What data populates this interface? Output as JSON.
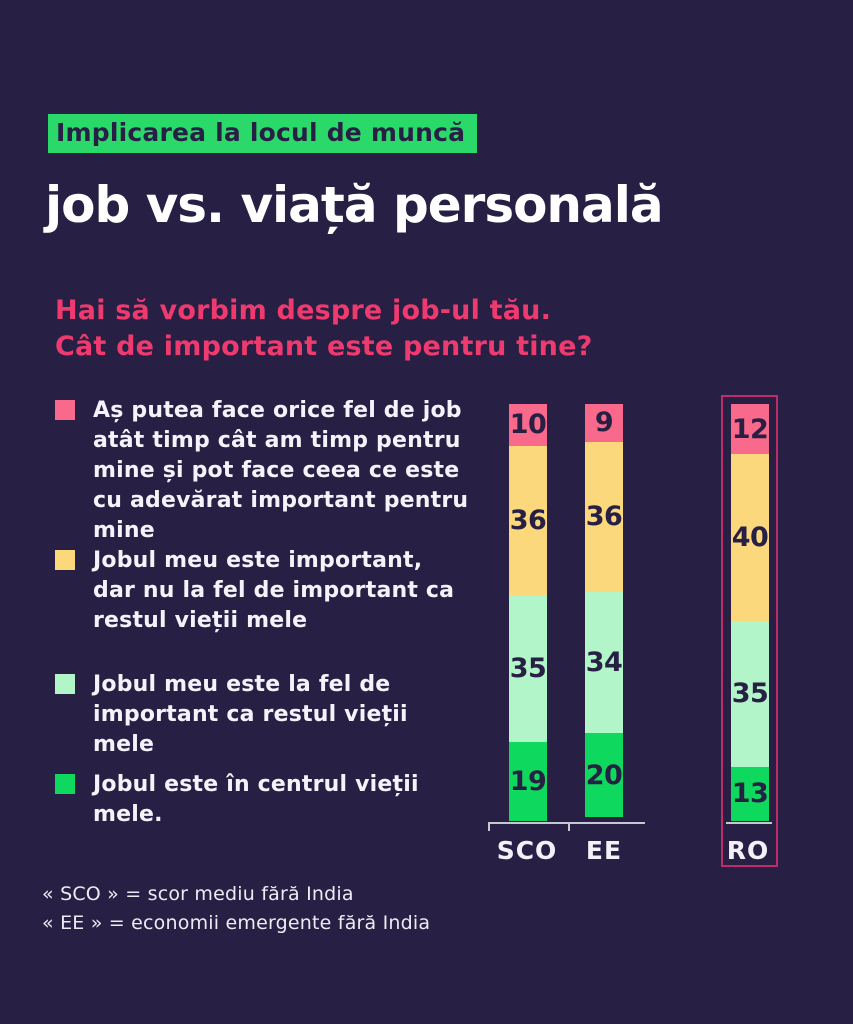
{
  "page": {
    "badge": {
      "label": "Implicarea la locul de muncă",
      "bg": "#2BD96A",
      "text_color": "#282044"
    },
    "title": "job vs. viață personală",
    "title_color": "#FFFFFF",
    "subtitle": {
      "line1": "Hai să vorbim despre job-ul tău.",
      "line2": "Cât de important este pentru tine?",
      "color": "#EE3A6E"
    },
    "background": "#282044"
  },
  "legend": {
    "items": [
      {
        "color": "#F9698C",
        "label": "Aș putea face orice fel de job atât timp cât am timp pentru mine și pot face ceea ce este cu adevărat important pentru mine"
      },
      {
        "color": "#FBD87B",
        "label": "Jobul meu este important, dar nu la fel de important ca restul vieții mele"
      },
      {
        "color": "#B2F5C8",
        "label": "Jobul meu este la fel de important ca restul vieții mele"
      },
      {
        "color": "#0ED95E",
        "label": "Jobul este în centrul vieții mele."
      }
    ]
  },
  "chart_data": {
    "type": "bar",
    "stacked": true,
    "orientation": "vertical",
    "categories": [
      "SCO",
      "EE",
      "RO"
    ],
    "series": [
      {
        "name": "Aș putea face orice fel de job atât timp cât am timp pentru mine și pot face ceea ce este cu adevărat important pentru mine",
        "color": "#F9698C",
        "values": [
          10,
          9,
          12
        ]
      },
      {
        "name": "Jobul meu este important, dar nu la fel de important ca restul vieții mele",
        "color": "#FBD87B",
        "values": [
          36,
          36,
          40
        ]
      },
      {
        "name": "Jobul meu este la fel de important ca restul vieții mele",
        "color": "#B2F5C8",
        "values": [
          35,
          34,
          35
        ]
      },
      {
        "name": "Jobul este în centrul vieții mele.",
        "color": "#0ED95E",
        "values": [
          19,
          20,
          13
        ]
      }
    ],
    "value_range": [
      0,
      100
    ],
    "value_labels_shown": true,
    "highlight_category": "RO",
    "highlight_box_color": "#BE2D67",
    "axis_line_color": "#C7C7D3",
    "legend_position": "left"
  },
  "footnotes": [
    "« SCO » = scor mediu fără India",
    "« EE » = economii emergente fără India"
  ]
}
